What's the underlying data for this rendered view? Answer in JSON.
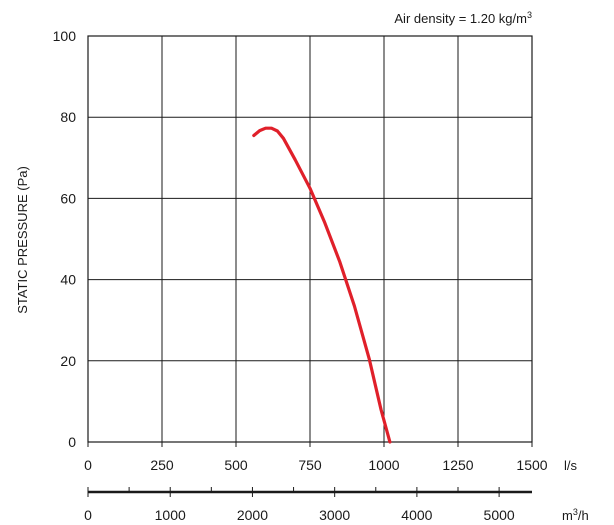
{
  "chart_data": {
    "type": "line",
    "annotation": {
      "prefix": "Air density = 1.20 kg/m",
      "superscript": "3"
    },
    "ylabel": "STATIC PRESSURE (Pa)",
    "ylim": [
      0,
      100
    ],
    "yticks": [
      0,
      20,
      40,
      60,
      80,
      100
    ],
    "xlim": [
      0,
      1500
    ],
    "xticks": [
      0,
      250,
      500,
      750,
      1000,
      1250,
      1500
    ],
    "xunit": "l/s",
    "x2lim": [
      0,
      5400
    ],
    "x2ticks": [
      0,
      1000,
      2000,
      3000,
      4000,
      5000
    ],
    "x2unit_base": "m",
    "x2unit_sup": "3",
    "x2unit_tail": "/h",
    "grid": true,
    "colors": {
      "curve": "#e0202a",
      "ink": "#1a1a1a"
    },
    "series": [
      {
        "x": [
          560,
          580,
          600,
          620,
          640,
          660,
          700,
          750,
          800,
          850,
          900,
          950,
          990,
          1020
        ],
        "y": [
          75.5,
          76.7,
          77.3,
          77.3,
          76.6,
          74.8,
          69.5,
          62.5,
          54.0,
          44.5,
          33.5,
          20.5,
          8.0,
          0
        ]
      }
    ]
  }
}
